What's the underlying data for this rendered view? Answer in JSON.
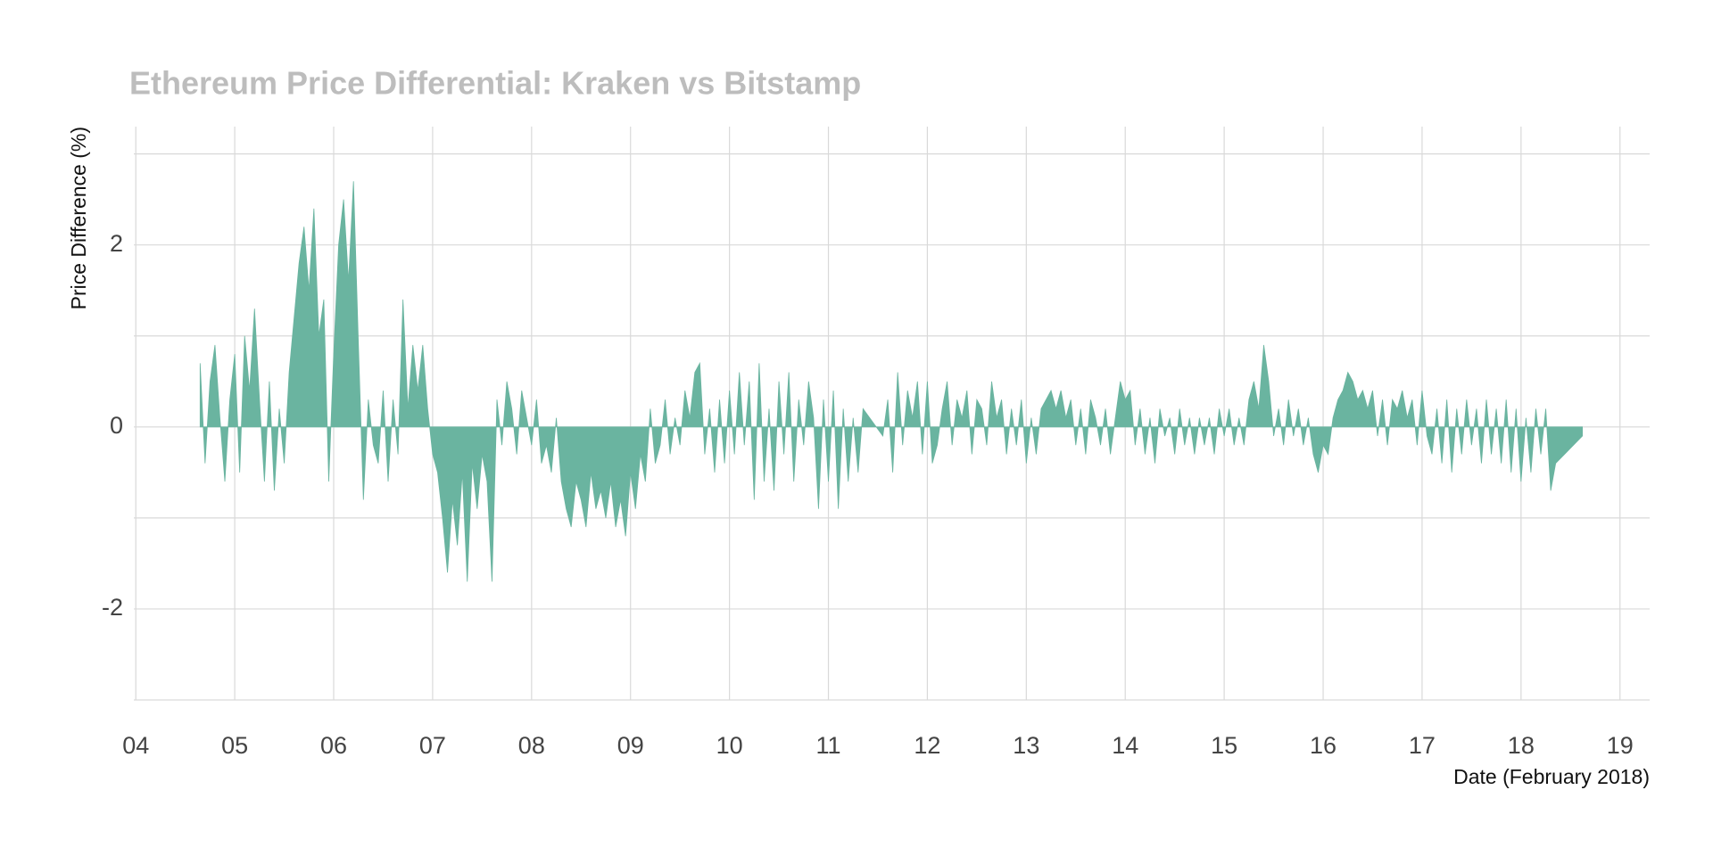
{
  "chart_data": {
    "type": "area",
    "title": "Ethereum Price Differential: Kraken vs Bitstamp",
    "xlabel": "Date (February 2018)",
    "ylabel": "Price Difference (%)",
    "color": "#6ab4a0",
    "grid": true,
    "xlim": [
      3.98,
      19.3
    ],
    "ylim": [
      -3,
      3.3
    ],
    "xticks": [
      {
        "value": 4,
        "label": "04"
      },
      {
        "value": 5,
        "label": "05"
      },
      {
        "value": 6,
        "label": "06"
      },
      {
        "value": 7,
        "label": "07"
      },
      {
        "value": 8,
        "label": "08"
      },
      {
        "value": 9,
        "label": "09"
      },
      10,
      11,
      12,
      13,
      14,
      15,
      16,
      17,
      18,
      19
    ],
    "yticks": [
      -2,
      0,
      2
    ],
    "yminor": [
      -3,
      -1,
      1,
      3
    ],
    "x": [
      4.65,
      4.7,
      4.75,
      4.8,
      4.85,
      4.9,
      4.95,
      5.0,
      5.05,
      5.1,
      5.15,
      5.2,
      5.25,
      5.3,
      5.35,
      5.4,
      5.45,
      5.5,
      5.55,
      5.6,
      5.65,
      5.7,
      5.75,
      5.8,
      5.85,
      5.9,
      5.95,
      6.0,
      6.05,
      6.1,
      6.15,
      6.2,
      6.25,
      6.3,
      6.35,
      6.4,
      6.45,
      6.5,
      6.55,
      6.6,
      6.65,
      6.7,
      6.75,
      6.8,
      6.85,
      6.9,
      6.95,
      7.0,
      7.05,
      7.1,
      7.15,
      7.2,
      7.25,
      7.3,
      7.35,
      7.4,
      7.45,
      7.5,
      7.55,
      7.6,
      7.65,
      7.7,
      7.75,
      7.8,
      7.85,
      7.9,
      7.95,
      8.0,
      8.05,
      8.1,
      8.15,
      8.2,
      8.25,
      8.3,
      8.35,
      8.4,
      8.45,
      8.5,
      8.55,
      8.6,
      8.65,
      8.7,
      8.75,
      8.8,
      8.85,
      8.9,
      8.95,
      9.0,
      9.05,
      9.1,
      9.15,
      9.2,
      9.25,
      9.3,
      9.35,
      9.4,
      9.45,
      9.5,
      9.55,
      9.6,
      9.65,
      9.7,
      9.75,
      9.8,
      9.85,
      9.9,
      9.95,
      10.0,
      10.05,
      10.1,
      10.15,
      10.2,
      10.25,
      10.3,
      10.35,
      10.4,
      10.45,
      10.5,
      10.55,
      10.6,
      10.65,
      10.7,
      10.75,
      10.8,
      10.85,
      10.9,
      10.95,
      11.0,
      11.05,
      11.1,
      11.15,
      11.2,
      11.25,
      11.3,
      11.35,
      11.55,
      11.6,
      11.65,
      11.7,
      11.75,
      11.8,
      11.85,
      11.9,
      11.95,
      12.0,
      12.05,
      12.1,
      12.15,
      12.2,
      12.25,
      12.3,
      12.35,
      12.4,
      12.45,
      12.5,
      12.55,
      12.6,
      12.65,
      12.7,
      12.75,
      12.8,
      12.85,
      12.9,
      12.95,
      13.0,
      13.05,
      13.1,
      13.15,
      13.2,
      13.25,
      13.3,
      13.35,
      13.4,
      13.45,
      13.5,
      13.55,
      13.6,
      13.65,
      13.7,
      13.75,
      13.8,
      13.85,
      13.9,
      13.95,
      14.0,
      14.05,
      14.1,
      14.15,
      14.2,
      14.25,
      14.3,
      14.35,
      14.4,
      14.45,
      14.5,
      14.55,
      14.6,
      14.65,
      14.7,
      14.75,
      14.8,
      14.85,
      14.9,
      14.95,
      15.0,
      15.05,
      15.1,
      15.15,
      15.2,
      15.25,
      15.3,
      15.35,
      15.4,
      15.45,
      15.5,
      15.55,
      15.6,
      15.65,
      15.7,
      15.75,
      15.8,
      15.85,
      15.9,
      15.95,
      16.0,
      16.05,
      16.1,
      16.15,
      16.2,
      16.25,
      16.3,
      16.35,
      16.4,
      16.45,
      16.5,
      16.55,
      16.6,
      16.65,
      16.7,
      16.75,
      16.8,
      16.85,
      16.9,
      16.95,
      17.0,
      17.05,
      17.1,
      17.15,
      17.2,
      17.25,
      17.3,
      17.35,
      17.4,
      17.45,
      17.5,
      17.55,
      17.6,
      17.65,
      17.7,
      17.75,
      17.8,
      17.85,
      17.9,
      17.95,
      18.0,
      18.05,
      18.1,
      18.15,
      18.2,
      18.25,
      18.3,
      18.35,
      18.62
    ],
    "values": [
      0.7,
      -0.4,
      0.5,
      0.9,
      0.1,
      -0.6,
      0.3,
      0.8,
      -0.5,
      1.0,
      0.4,
      1.3,
      0.3,
      -0.6,
      0.5,
      -0.7,
      0.2,
      -0.4,
      0.6,
      1.2,
      1.8,
      2.2,
      1.5,
      2.4,
      1.0,
      1.4,
      -0.6,
      0.8,
      2.0,
      2.5,
      1.6,
      2.7,
      0.9,
      -0.8,
      0.3,
      -0.2,
      -0.4,
      0.4,
      -0.6,
      0.3,
      -0.3,
      1.4,
      0.2,
      0.9,
      0.4,
      0.9,
      0.2,
      -0.3,
      -0.5,
      -1.0,
      -1.6,
      -0.8,
      -1.3,
      -0.5,
      -1.7,
      -0.4,
      -0.9,
      -0.3,
      -0.6,
      -1.7,
      0.3,
      -0.2,
      0.5,
      0.2,
      -0.3,
      0.4,
      0.1,
      -0.2,
      0.3,
      -0.4,
      -0.2,
      -0.5,
      0.1,
      -0.6,
      -0.9,
      -1.1,
      -0.6,
      -0.8,
      -1.1,
      -0.5,
      -0.9,
      -0.7,
      -1.0,
      -0.6,
      -1.1,
      -0.8,
      -1.2,
      -0.5,
      -0.9,
      -0.3,
      -0.6,
      0.2,
      -0.4,
      -0.2,
      0.3,
      -0.3,
      0.1,
      -0.2,
      0.4,
      0.1,
      0.6,
      0.7,
      -0.3,
      0.2,
      -0.5,
      0.3,
      -0.4,
      0.4,
      -0.3,
      0.6,
      -0.2,
      0.5,
      -0.8,
      0.7,
      -0.6,
      0.2,
      -0.7,
      0.5,
      -0.3,
      0.6,
      -0.6,
      0.3,
      -0.2,
      0.5,
      0.1,
      -0.9,
      0.3,
      -0.6,
      0.4,
      -0.9,
      0.2,
      -0.6,
      0.1,
      -0.5,
      0.2,
      -0.1,
      0.3,
      -0.5,
      0.6,
      -0.2,
      0.4,
      0.1,
      0.5,
      -0.3,
      0.5,
      -0.4,
      -0.2,
      0.2,
      0.5,
      -0.2,
      0.3,
      0.1,
      0.4,
      -0.3,
      0.3,
      0.2,
      -0.2,
      0.5,
      0.1,
      0.3,
      -0.3,
      0.2,
      -0.2,
      0.3,
      -0.4,
      0.1,
      -0.3,
      0.2,
      0.3,
      0.4,
      0.2,
      0.4,
      0.1,
      0.3,
      -0.2,
      0.2,
      -0.3,
      0.3,
      0.1,
      -0.2,
      0.2,
      -0.3,
      0.1,
      0.5,
      0.3,
      0.4,
      -0.2,
      0.2,
      -0.3,
      0.1,
      -0.4,
      0.2,
      -0.1,
      0.1,
      -0.3,
      0.2,
      -0.2,
      0.1,
      -0.3,
      0.1,
      -0.2,
      0.1,
      -0.3,
      0.2,
      -0.1,
      0.2,
      -0.2,
      0.1,
      -0.2,
      0.3,
      0.5,
      0.2,
      0.9,
      0.5,
      -0.1,
      0.2,
      -0.2,
      0.3,
      -0.1,
      0.2,
      -0.2,
      0.1,
      -0.3,
      -0.5,
      -0.2,
      -0.3,
      0.1,
      0.3,
      0.4,
      0.6,
      0.5,
      0.3,
      0.4,
      0.2,
      0.4,
      -0.1,
      0.3,
      -0.2,
      0.3,
      0.2,
      0.4,
      0.1,
      0.3,
      -0.2,
      0.4,
      -0.1,
      -0.3,
      0.2,
      -0.4,
      0.3,
      -0.5,
      0.2,
      -0.3,
      0.3,
      -0.2,
      0.2,
      -0.4,
      0.3,
      -0.3,
      0.2,
      -0.4,
      0.3,
      -0.5,
      0.2,
      -0.6,
      0.1,
      -0.5,
      0.2,
      -0.3,
      0.2,
      -0.7,
      -0.4,
      -0.1
    ]
  }
}
